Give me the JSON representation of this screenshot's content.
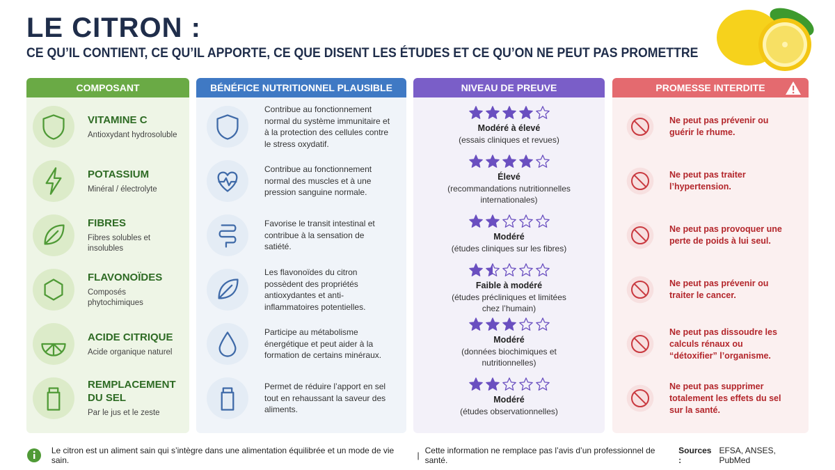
{
  "header": {
    "title": "LE CITRON :",
    "subtitle": "CE QU’IL CONTIENT, CE QU’IL APPORTE, CE QUE DISENT LES ÉTUDES ET CE QU’ON NE PEUT PAS PROMETTRE"
  },
  "columns": [
    "COMPOSANT",
    "BÉNÉFICE NUTRITIONNEL PLAUSIBLE",
    "NIVEAU DE PREUVE",
    "PROMESSE INTERDITE"
  ],
  "star_scale": 5,
  "rows": [
    {
      "component": "VITAMINE C",
      "detail": "Antioxydant hydrosoluble",
      "benefit": "Contribue au fonctionnement normal du système immunitaire et à la protection des cellules contre le stress oxydatif.",
      "stars": 4,
      "level": "Modéré à élevé",
      "source": "(essais cliniques et revues)",
      "promise": "Ne peut pas prévenir ou guérir le rhume."
    },
    {
      "component": "POTASSIUM",
      "detail": "Minéral / électrolyte",
      "benefit": "Contribue au fonctionnement normal des muscles et à une pression sanguine normale.",
      "stars": 4,
      "level": "Élevé",
      "source": "(recommandations nutritionnelles internationales)",
      "promise": "Ne peut pas traiter l’hypertension."
    },
    {
      "component": "FIBRES",
      "detail": "Fibres solubles et insolubles",
      "benefit": "Favorise le transit intestinal et contribue à la sensation de satiété.",
      "stars": 2,
      "level": "Modéré",
      "source": "(études cliniques sur les fibres)",
      "promise": "Ne peut pas provoquer une perte de poids à lui seul."
    },
    {
      "component": "FLAVONOÏDES",
      "detail": "Composés phytochimiques",
      "benefit": "Les flavonoïdes du citron possèdent des propriétés antioxydantes et anti-inflammatoires potentielles.",
      "stars": 1.5,
      "level": "Faible à modéré",
      "source": "(études précliniques et limitées chez l’humain)",
      "promise": "Ne peut pas prévenir ou traiter le cancer."
    },
    {
      "component": "ACIDE CITRIQUE",
      "detail": "Acide organique naturel",
      "benefit": "Participe au métabolisme énergétique et peut aider à la formation de certains minéraux.",
      "stars": 3,
      "level": "Modéré",
      "source": "(données biochimiques et nutritionnelles)",
      "promise": "Ne peut pas dissoudre les calculs rénaux ou “détoxifier” l’organisme."
    },
    {
      "component": "REMPLACEMENT DU SEL",
      "detail": "Par le jus et le zeste",
      "benefit": "Permet de réduire l’apport en sel tout en rehaussant la saveur des aliments.",
      "stars": 2,
      "level": "Modéré",
      "source": "(études observationnelles)",
      "promise": "Ne peut pas supprimer totalement les effets du sel sur la santé."
    }
  ],
  "footer": {
    "note": "Le citron est un aliment sain qui s’intègre dans une alimentation équilibrée et un mode de vie sain.",
    "separator": "|",
    "disclaimer": "Cette information ne remplace pas l’avis d’un professionnel de santé.",
    "sources_label": "Sources :",
    "sources": "EFSA, ANSES, PubMed"
  }
}
